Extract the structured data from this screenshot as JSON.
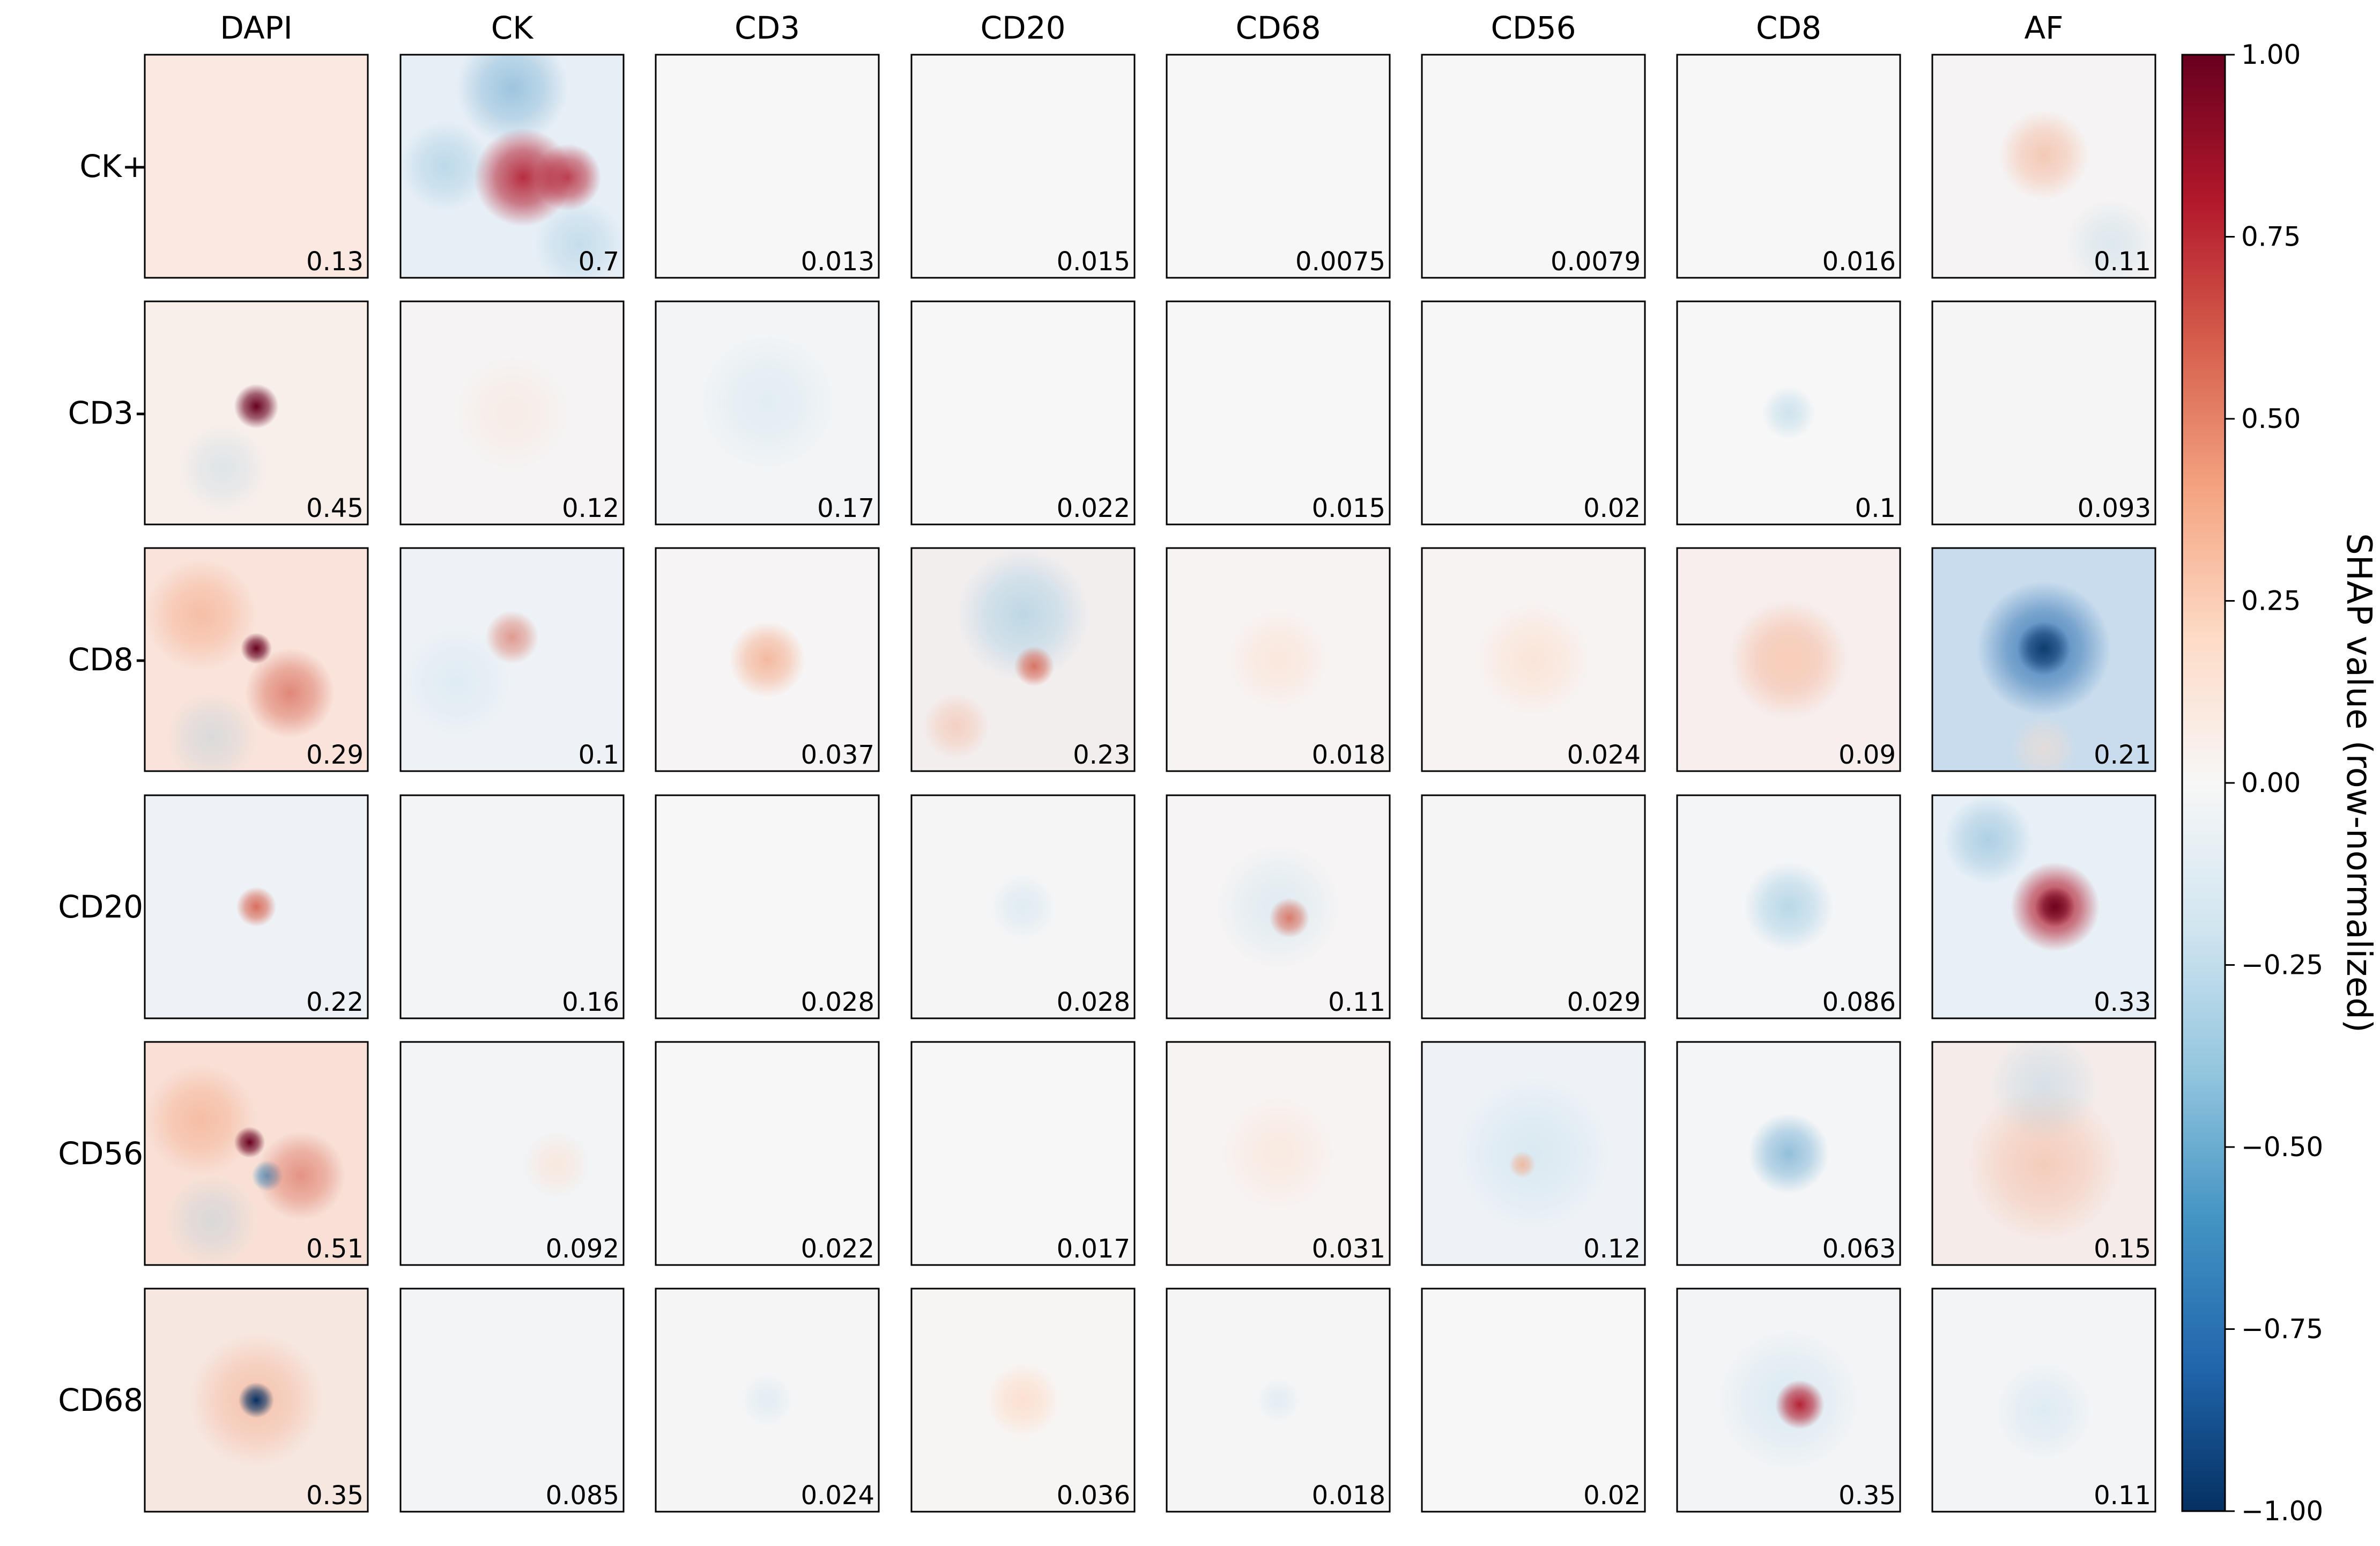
{
  "chart_data": {
    "type": "heatmap",
    "grid": "small multiples, 6 rows x 8 columns",
    "columns": [
      "DAPI",
      "CK",
      "CD3",
      "CD20",
      "CD68",
      "CD56",
      "CD8",
      "AF"
    ],
    "rows": [
      "CK+",
      "CD3+",
      "CD8+",
      "CD20+",
      "CD56+",
      "CD68+"
    ],
    "values": [
      [
        "0.13",
        "0.7",
        "0.013",
        "0.015",
        "0.0075",
        "0.0079",
        "0.016",
        "0.11"
      ],
      [
        "0.45",
        "0.12",
        "0.17",
        "0.022",
        "0.015",
        "0.02",
        "0.1",
        "0.093"
      ],
      [
        "0.29",
        "0.1",
        "0.037",
        "0.23",
        "0.018",
        "0.024",
        "0.09",
        "0.21"
      ],
      [
        "0.22",
        "0.16",
        "0.028",
        "0.028",
        "0.11",
        "0.029",
        "0.086",
        "0.33"
      ],
      [
        "0.51",
        "0.092",
        "0.022",
        "0.017",
        "0.031",
        "0.12",
        "0.063",
        "0.15"
      ],
      [
        "0.35",
        "0.085",
        "0.024",
        "0.036",
        "0.018",
        "0.02",
        "0.35",
        "0.11"
      ]
    ],
    "colorbar": {
      "label": "SHAP value (row-normalized)",
      "range": [
        -1.0,
        1.0
      ],
      "ticks": [
        "1.00",
        "0.75",
        "0.50",
        "0.25",
        "0.00",
        "−0.25",
        "−0.50",
        "−0.75",
        "−1.00"
      ],
      "colormap": "RdBu_r",
      "stops": [
        "#053061",
        "#2166ac",
        "#4393c3",
        "#92c5de",
        "#d1e5f0",
        "#f7f7f7",
        "#fddbc7",
        "#f4a582",
        "#d6604d",
        "#b2182b",
        "#67001f"
      ]
    }
  }
}
